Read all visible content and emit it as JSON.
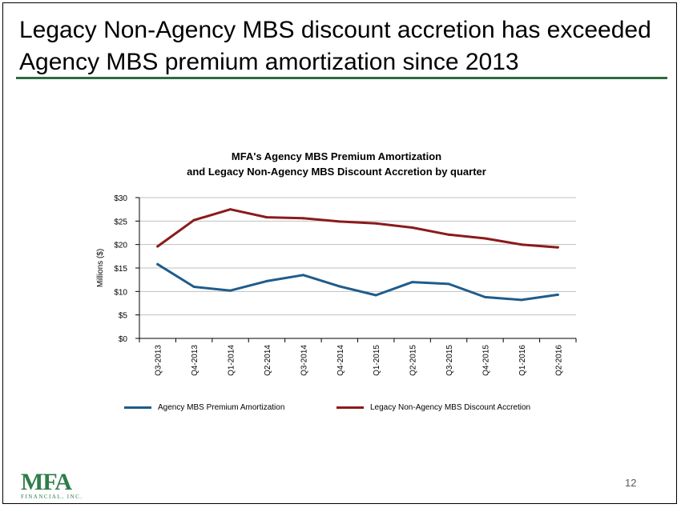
{
  "slide": {
    "title_line1": "Legacy Non-Agency MBS discount accretion has exceeded",
    "title_line2": "Agency MBS premium amortization since 2013",
    "page_number": "12",
    "accent_color": "#2E6B3E"
  },
  "logo": {
    "mark": "MFA",
    "subtitle": "FINANCIAL, INC."
  },
  "chart_data": {
    "type": "line",
    "title_line1": "MFA's Agency MBS Premium Amortization",
    "title_line2": "and Legacy Non-Agency MBS Discount Accretion by quarter",
    "xlabel": "",
    "ylabel": "Millions ($)",
    "ylim": [
      0,
      30
    ],
    "yticks": [
      0,
      5,
      10,
      15,
      20,
      25,
      30
    ],
    "ytick_labels": [
      "$0",
      "$5",
      "$10",
      "$15",
      "$20",
      "$25",
      "$30"
    ],
    "grid": true,
    "legend_position": "bottom",
    "categories": [
      "Q3-2013",
      "Q4-2013",
      "Q1-2014",
      "Q2-2014",
      "Q3-2014",
      "Q4-2014",
      "Q1-2015",
      "Q2-2015",
      "Q3-2015",
      "Q4-2015",
      "Q1-2016",
      "Q2-2016"
    ],
    "series": [
      {
        "name": "Agency MBS Premium Amortization",
        "color": "#1F5C8B",
        "values": [
          15.8,
          11.0,
          10.2,
          12.2,
          13.5,
          11.1,
          9.2,
          12.0,
          11.6,
          8.8,
          8.2,
          9.3
        ]
      },
      {
        "name": "Legacy Non-Agency MBS Discount Accretion",
        "color": "#8B1A1A",
        "values": [
          19.6,
          25.2,
          27.5,
          25.8,
          25.6,
          24.9,
          24.5,
          23.6,
          22.1,
          21.3,
          20.0,
          19.4
        ]
      }
    ]
  }
}
